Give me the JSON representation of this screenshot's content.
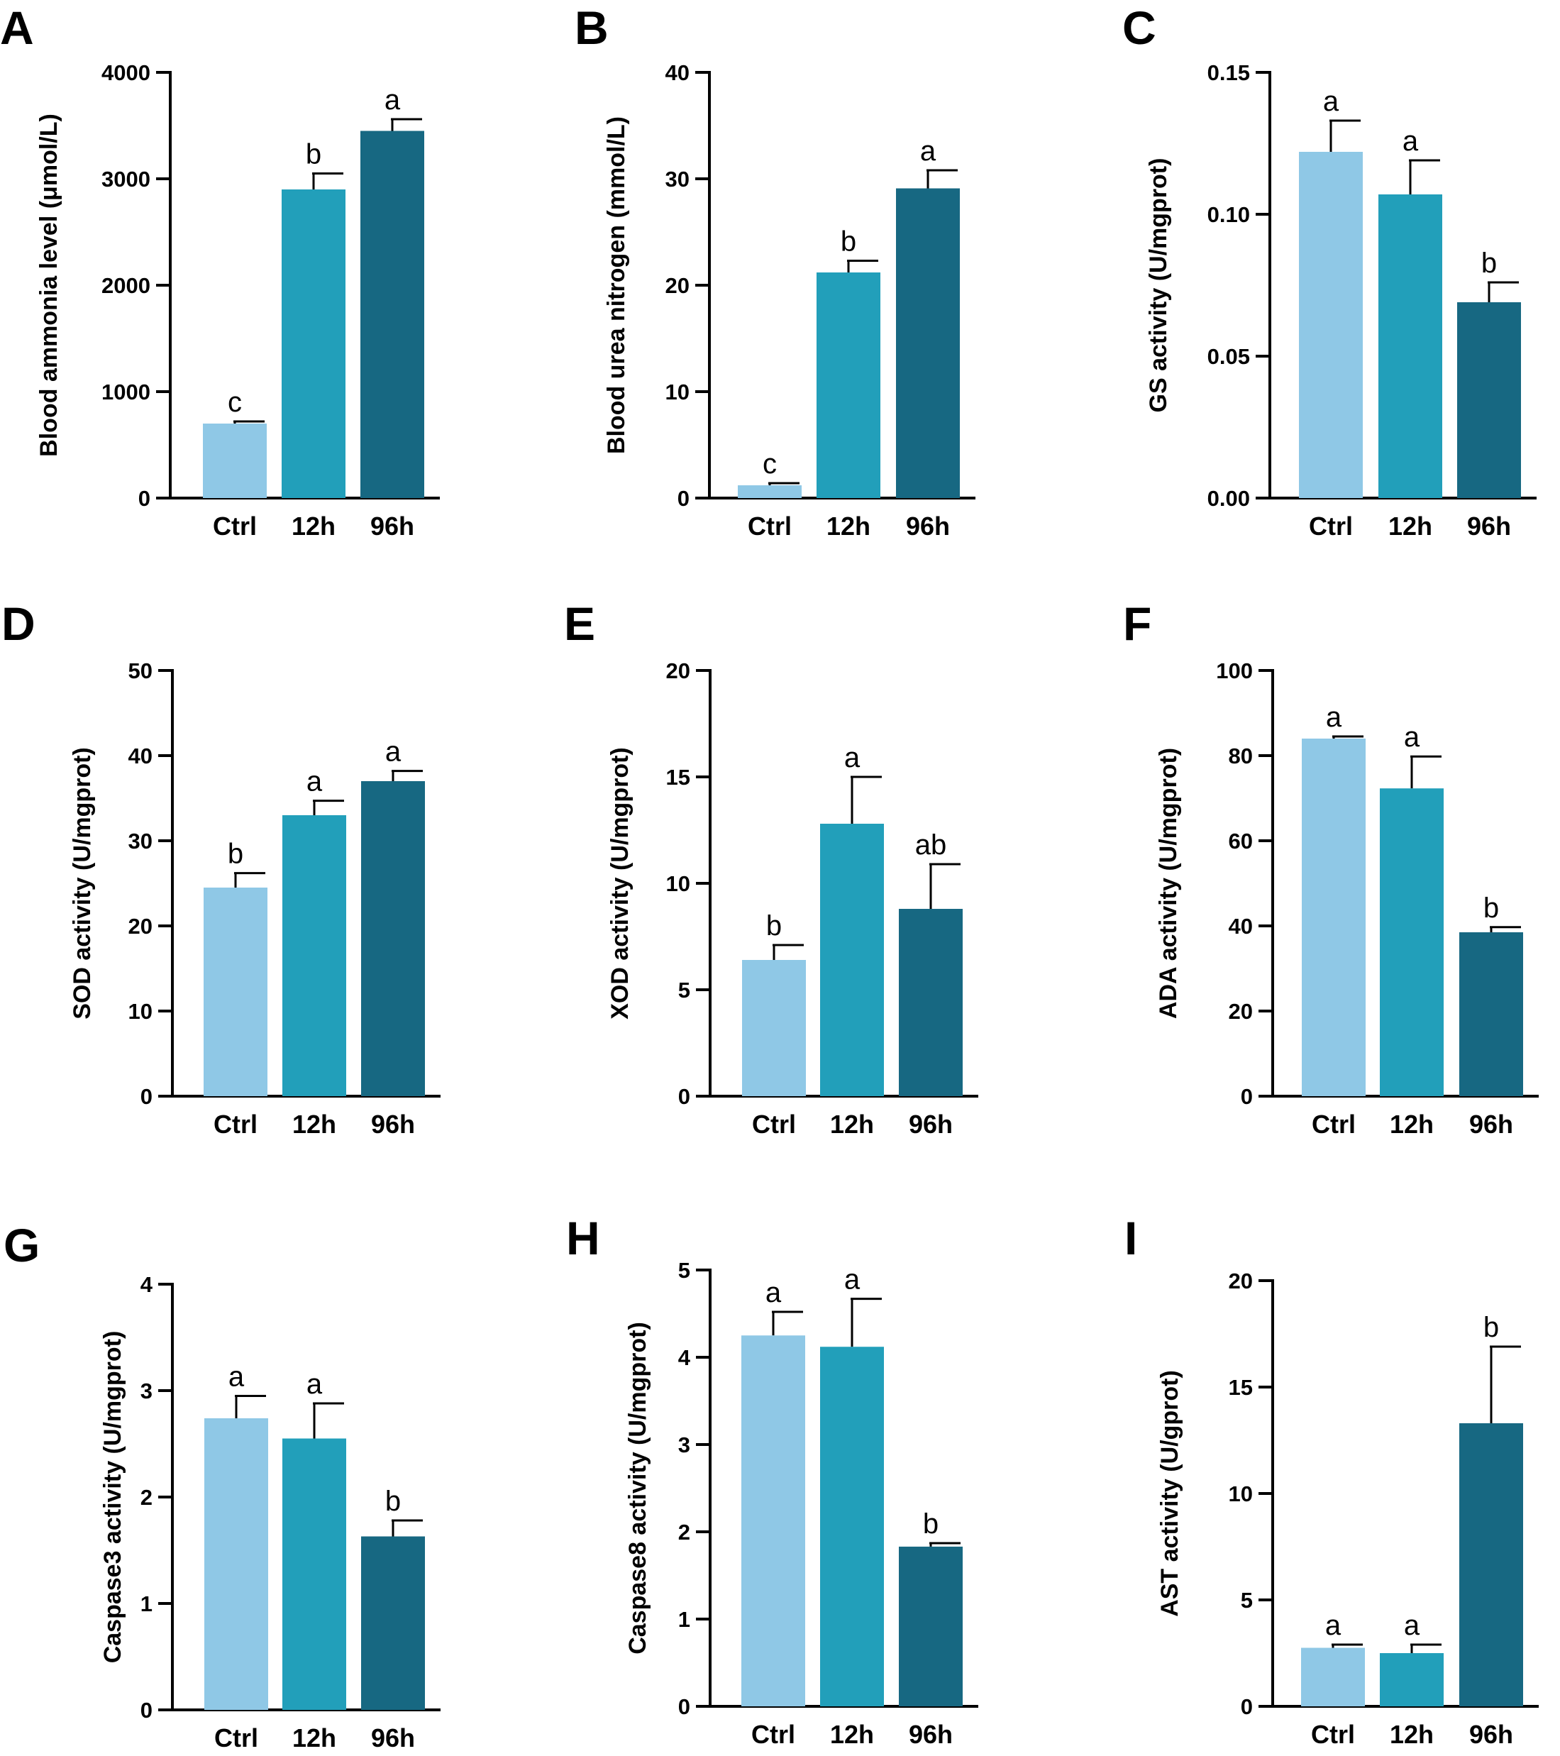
{
  "colors": {
    "Ctrl": "#8fc8e6",
    "12h": "#229fba",
    "96h": "#176882",
    "axis": "#000000"
  },
  "chart_data": [
    {
      "type": "bar",
      "panel": "A",
      "categories": [
        "Ctrl",
        "12h",
        "96h"
      ],
      "values": [
        700,
        2900,
        3450
      ],
      "errors": [
        20,
        150,
        110
      ],
      "significance": [
        "c",
        "b",
        "a"
      ],
      "ylabel": "Blood ammonia level (μmol/L)",
      "ylim": [
        0,
        4000
      ],
      "yticks": [
        "0",
        "1000",
        "2000",
        "3000",
        "4000"
      ]
    },
    {
      "type": "bar",
      "panel": "B",
      "categories": [
        "Ctrl",
        "12h",
        "96h"
      ],
      "values": [
        1.2,
        21.2,
        29.1
      ],
      "errors": [
        0.2,
        1.1,
        1.7
      ],
      "significance": [
        "c",
        "b",
        "a"
      ],
      "ylabel": "Blood urea nitrogen (mmol/L)",
      "ylim": [
        0,
        40
      ],
      "yticks": [
        "0",
        "10",
        "20",
        "30",
        "40"
      ]
    },
    {
      "type": "bar",
      "panel": "C",
      "categories": [
        "Ctrl",
        "12h",
        "96h"
      ],
      "values": [
        0.122,
        0.107,
        0.069
      ],
      "errors": [
        0.011,
        0.012,
        0.007
      ],
      "significance": [
        "a",
        "a",
        "b"
      ],
      "ylabel": "GS activity (U/mgprot)",
      "ylim": [
        0,
        0.15
      ],
      "yticks": [
        "0.00",
        "0.05",
        "0.10",
        "0.15"
      ]
    },
    {
      "type": "bar",
      "panel": "D",
      "categories": [
        "Ctrl",
        "12h",
        "96h"
      ],
      "values": [
        24.5,
        33.0,
        37.0
      ],
      "errors": [
        1.7,
        1.7,
        1.2
      ],
      "significance": [
        "b",
        "a",
        "a"
      ],
      "ylabel": "SOD activity (U/mgprot)",
      "ylim": [
        0,
        50
      ],
      "yticks": [
        "0",
        "10",
        "20",
        "30",
        "40",
        "50"
      ]
    },
    {
      "type": "bar",
      "panel": "E",
      "categories": [
        "Ctrl",
        "12h",
        "96h"
      ],
      "values": [
        6.4,
        12.8,
        8.8
      ],
      "errors": [
        0.7,
        2.2,
        2.1
      ],
      "significance": [
        "b",
        "a",
        "ab"
      ],
      "ylabel": "XOD activity (U/mgprot)",
      "ylim": [
        0,
        20
      ],
      "yticks": [
        "0",
        "5",
        "10",
        "15",
        "20"
      ]
    },
    {
      "type": "bar",
      "panel": "F",
      "categories": [
        "Ctrl",
        "12h",
        "96h"
      ],
      "values": [
        84.0,
        72.3,
        38.5
      ],
      "errors": [
        0.5,
        7.5,
        1.2
      ],
      "significance": [
        "a",
        "a",
        "b"
      ],
      "ylabel": "ADA activity (U/mgprot)",
      "ylim": [
        0,
        100
      ],
      "yticks": [
        "0",
        "20",
        "40",
        "60",
        "80",
        "100"
      ]
    },
    {
      "type": "bar",
      "panel": "G",
      "categories": [
        "Ctrl",
        "12h",
        "96h"
      ],
      "values": [
        2.74,
        2.55,
        1.63
      ],
      "errors": [
        0.21,
        0.33,
        0.15
      ],
      "significance": [
        "a",
        "a",
        "b"
      ],
      "ylabel": "Caspase3 activity (U/mgprot)",
      "ylim": [
        0,
        4
      ],
      "yticks": [
        "0",
        "1",
        "2",
        "3",
        "4"
      ]
    },
    {
      "type": "bar",
      "panel": "H",
      "categories": [
        "Ctrl",
        "12h",
        "96h"
      ],
      "values": [
        4.25,
        4.12,
        1.83
      ],
      "errors": [
        0.27,
        0.55,
        0.04
      ],
      "significance": [
        "a",
        "a",
        "b"
      ],
      "ylabel": "Caspase8 activity (U/mgprot)",
      "ylim": [
        0,
        5
      ],
      "yticks": [
        "0",
        "1",
        "2",
        "3",
        "4",
        "5"
      ]
    },
    {
      "type": "bar",
      "panel": "I",
      "categories": [
        "Ctrl",
        "12h",
        "96h"
      ],
      "values": [
        2.75,
        2.5,
        13.3
      ],
      "errors": [
        0.15,
        0.4,
        3.6
      ],
      "significance": [
        "a",
        "a",
        "b"
      ],
      "ylabel": "AST activity (U/gprot)",
      "ylim": [
        0,
        20
      ],
      "yticks": [
        "0",
        "5",
        "10",
        "15",
        "20"
      ]
    }
  ]
}
